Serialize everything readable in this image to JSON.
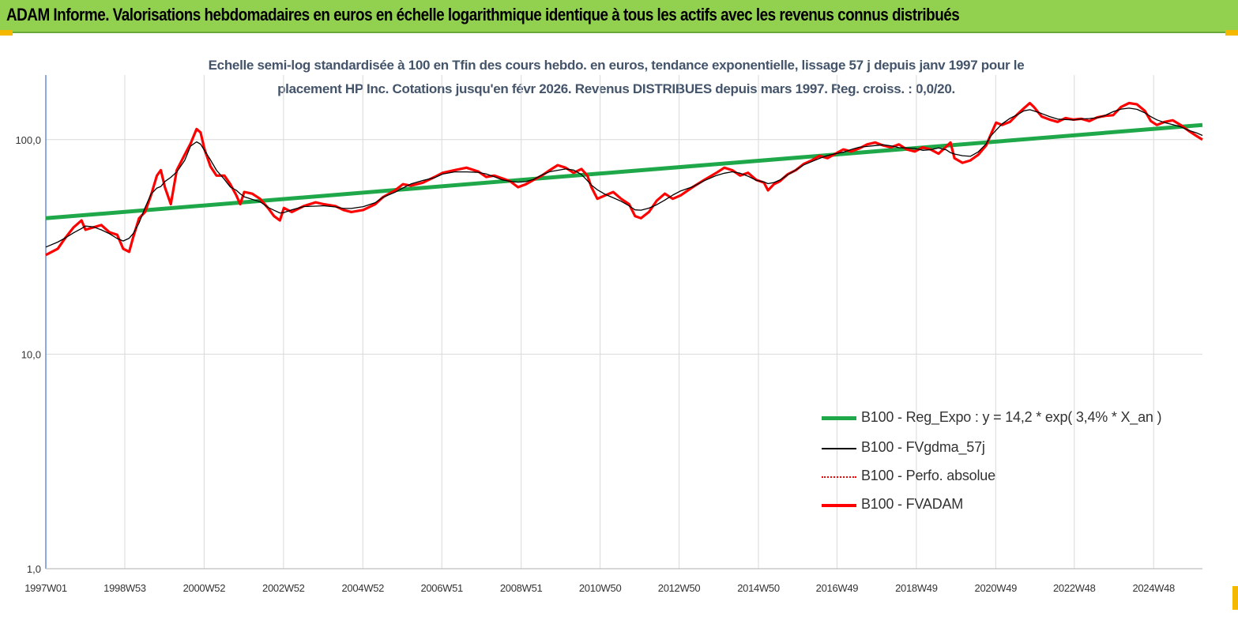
{
  "banner": {
    "title": "ADAM Informe. Valorisations hebdomadaires en euros en échelle logarithmique identique à tous les actifs avec les revenus connus distribués"
  },
  "colors": {
    "banner": "#92d050",
    "corner": "#f5b800",
    "trend": "#1fa84a",
    "smooth": "#000000",
    "perf": "#ff0000",
    "fvadam": "#ff0000",
    "grid": "#d9d9d9",
    "subtitle": "#44546a"
  },
  "chart_data": {
    "type": "line",
    "title_line1": "Echelle semi-log standardisée à 100 en Tfin des cours hebdo. en euros, tendance exponentielle, lissage 57 j depuis janv 1997 pour le",
    "title_line2": "placement HP Inc. Cotations jusqu'en févr 2026. Revenus DISTRIBUES depuis mars 1997. Reg. croiss. : 0,0/20.",
    "y_scale": "log",
    "ylim": [
      1,
      200
    ],
    "y_ticks": [
      1,
      10,
      100
    ],
    "y_tick_labels": [
      "1,0",
      "10,0",
      "100,0"
    ],
    "x_range": [
      1997.0,
      2026.15
    ],
    "x_ticks": [
      1997.0,
      1998.99,
      2000.99,
      2002.99,
      2004.99,
      2006.98,
      2008.98,
      2010.97,
      2012.96,
      2014.96,
      2016.94,
      2018.94,
      2020.94,
      2022.92,
      2024.92
    ],
    "x_tick_labels": [
      "1997W01",
      "1998W53",
      "2000W52",
      "2002W52",
      "2004W52",
      "2006W51",
      "2008W51",
      "2010W50",
      "2012W50",
      "2014W50",
      "2016W49",
      "2018W49",
      "2020W49",
      "2022W48",
      "2024W48"
    ],
    "grid": true,
    "legend_position": "bottom-right",
    "series": [
      {
        "name": "B100 - Reg_Expo : y = 14,2 * exp( 3,4% * X_an )",
        "key": "trend",
        "points": [
          [
            1997.0,
            43
          ],
          [
            2026.15,
            117
          ]
        ]
      },
      {
        "name": "B100 - FVgdma_57j",
        "key": "smooth",
        "points": []
      },
      {
        "name": "B100 - Perfo. absolue",
        "key": "perf",
        "points": []
      },
      {
        "name": "B100 - FVADAM",
        "key": "fvadam",
        "points": [
          [
            1997.0,
            29
          ],
          [
            1997.3,
            31
          ],
          [
            1997.5,
            35
          ],
          [
            1997.7,
            39
          ],
          [
            1997.9,
            42
          ],
          [
            1998.0,
            38
          ],
          [
            1998.2,
            39
          ],
          [
            1998.4,
            40
          ],
          [
            1998.6,
            37
          ],
          [
            1998.8,
            36
          ],
          [
            1998.95,
            31
          ],
          [
            1999.1,
            30
          ],
          [
            1999.2,
            35
          ],
          [
            1999.35,
            43
          ],
          [
            1999.5,
            46
          ],
          [
            1999.65,
            55
          ],
          [
            1999.8,
            68
          ],
          [
            1999.9,
            72
          ],
          [
            2000.0,
            60
          ],
          [
            2000.15,
            50
          ],
          [
            2000.3,
            72
          ],
          [
            2000.5,
            85
          ],
          [
            2000.65,
            96
          ],
          [
            2000.8,
            112
          ],
          [
            2000.9,
            108
          ],
          [
            2001.0,
            90
          ],
          [
            2001.15,
            75
          ],
          [
            2001.3,
            68
          ],
          [
            2001.5,
            68
          ],
          [
            2001.65,
            62
          ],
          [
            2001.8,
            55
          ],
          [
            2001.9,
            50
          ],
          [
            2002.0,
            57
          ],
          [
            2002.2,
            56
          ],
          [
            2002.4,
            53
          ],
          [
            2002.6,
            48
          ],
          [
            2002.75,
            44
          ],
          [
            2002.9,
            42
          ],
          [
            2003.0,
            48
          ],
          [
            2003.2,
            46
          ],
          [
            2003.5,
            49
          ],
          [
            2003.8,
            51
          ],
          [
            2004.0,
            50
          ],
          [
            2004.3,
            49
          ],
          [
            2004.5,
            47
          ],
          [
            2004.7,
            46
          ],
          [
            2005.0,
            47
          ],
          [
            2005.3,
            50
          ],
          [
            2005.5,
            54
          ],
          [
            2005.8,
            58
          ],
          [
            2006.0,
            62
          ],
          [
            2006.2,
            61
          ],
          [
            2006.5,
            63
          ],
          [
            2006.8,
            67
          ],
          [
            2007.0,
            70
          ],
          [
            2007.3,
            72
          ],
          [
            2007.6,
            74
          ],
          [
            2007.9,
            71
          ],
          [
            2008.1,
            67
          ],
          [
            2008.3,
            68
          ],
          [
            2008.5,
            66
          ],
          [
            2008.7,
            64
          ],
          [
            2008.9,
            60
          ],
          [
            2009.1,
            62
          ],
          [
            2009.3,
            65
          ],
          [
            2009.5,
            68
          ],
          [
            2009.7,
            72
          ],
          [
            2009.9,
            76
          ],
          [
            2010.1,
            74
          ],
          [
            2010.3,
            70
          ],
          [
            2010.5,
            73
          ],
          [
            2010.65,
            68
          ],
          [
            2010.75,
            60
          ],
          [
            2010.9,
            53
          ],
          [
            2011.1,
            55
          ],
          [
            2011.3,
            57
          ],
          [
            2011.5,
            53
          ],
          [
            2011.7,
            50
          ],
          [
            2011.85,
            44
          ],
          [
            2012.0,
            43
          ],
          [
            2012.2,
            46
          ],
          [
            2012.4,
            52
          ],
          [
            2012.6,
            56
          ],
          [
            2012.8,
            53
          ],
          [
            2013.0,
            55
          ],
          [
            2013.3,
            60
          ],
          [
            2013.6,
            65
          ],
          [
            2013.9,
            70
          ],
          [
            2014.1,
            74
          ],
          [
            2014.3,
            72
          ],
          [
            2014.5,
            68
          ],
          [
            2014.7,
            70
          ],
          [
            2014.9,
            65
          ],
          [
            2015.1,
            63
          ],
          [
            2015.2,
            58
          ],
          [
            2015.35,
            62
          ],
          [
            2015.5,
            64
          ],
          [
            2015.7,
            69
          ],
          [
            2015.9,
            72
          ],
          [
            2016.1,
            77
          ],
          [
            2016.3,
            80
          ],
          [
            2016.5,
            84
          ],
          [
            2016.7,
            82
          ],
          [
            2016.9,
            86
          ],
          [
            2017.1,
            90
          ],
          [
            2017.3,
            88
          ],
          [
            2017.5,
            91
          ],
          [
            2017.7,
            95
          ],
          [
            2017.9,
            97
          ],
          [
            2018.1,
            94
          ],
          [
            2018.3,
            92
          ],
          [
            2018.5,
            95
          ],
          [
            2018.7,
            90
          ],
          [
            2018.9,
            88
          ],
          [
            2019.1,
            92
          ],
          [
            2019.3,
            90
          ],
          [
            2019.5,
            86
          ],
          [
            2019.7,
            93
          ],
          [
            2019.8,
            97
          ],
          [
            2019.9,
            82
          ],
          [
            2020.1,
            78
          ],
          [
            2020.3,
            80
          ],
          [
            2020.5,
            85
          ],
          [
            2020.7,
            94
          ],
          [
            2020.8,
            104
          ],
          [
            2020.95,
            120
          ],
          [
            2021.1,
            117
          ],
          [
            2021.3,
            121
          ],
          [
            2021.5,
            132
          ],
          [
            2021.65,
            140
          ],
          [
            2021.8,
            148
          ],
          [
            2021.9,
            142
          ],
          [
            2022.1,
            128
          ],
          [
            2022.3,
            124
          ],
          [
            2022.5,
            121
          ],
          [
            2022.7,
            126
          ],
          [
            2022.9,
            124
          ],
          [
            2023.1,
            125
          ],
          [
            2023.3,
            122
          ],
          [
            2023.5,
            127
          ],
          [
            2023.7,
            129
          ],
          [
            2023.9,
            130
          ],
          [
            2024.1,
            142
          ],
          [
            2024.3,
            148
          ],
          [
            2024.5,
            146
          ],
          [
            2024.7,
            136
          ],
          [
            2024.85,
            122
          ],
          [
            2025.0,
            117
          ],
          [
            2025.2,
            121
          ],
          [
            2025.4,
            123
          ],
          [
            2025.6,
            117
          ],
          [
            2025.8,
            110
          ],
          [
            2026.0,
            104
          ],
          [
            2026.15,
            100
          ]
        ]
      }
    ]
  }
}
